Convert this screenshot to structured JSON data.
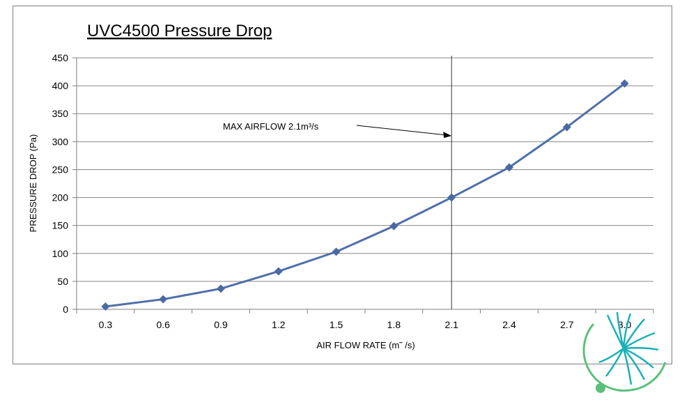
{
  "chart_data": {
    "type": "line",
    "title": "UVC4500 Pressure Drop",
    "xlabel": "AIR FLOW RATE (m˜ /s)",
    "ylabel": "PRESSURE DROP (Pa)",
    "categories": [
      "0.3",
      "0.6",
      "0.9",
      "1.2",
      "1.5",
      "1.8",
      "2.1",
      "2.4",
      "2.7",
      "3.0"
    ],
    "series": [
      {
        "values": [
          5,
          18,
          37,
          68,
          103,
          149,
          200,
          254,
          326,
          404
        ]
      }
    ],
    "ylim": [
      0,
      450
    ],
    "yticks": [
      0,
      50,
      100,
      150,
      200,
      250,
      300,
      350,
      400,
      450
    ],
    "grid": "horizontal",
    "legend": "none",
    "marker": "diamond",
    "colors": {
      "series": "#4f6fa8",
      "marker": "#4a6aa3",
      "grid": "#888888",
      "axis": "#7f7f7f"
    },
    "annotation": {
      "text": "MAX AIRFLOW 2.1m³/s",
      "x": 2.1
    }
  },
  "logo": {
    "icon": "fan-logo-icon",
    "colors": [
      "#1ab0b8",
      "#5cc07a"
    ]
  }
}
